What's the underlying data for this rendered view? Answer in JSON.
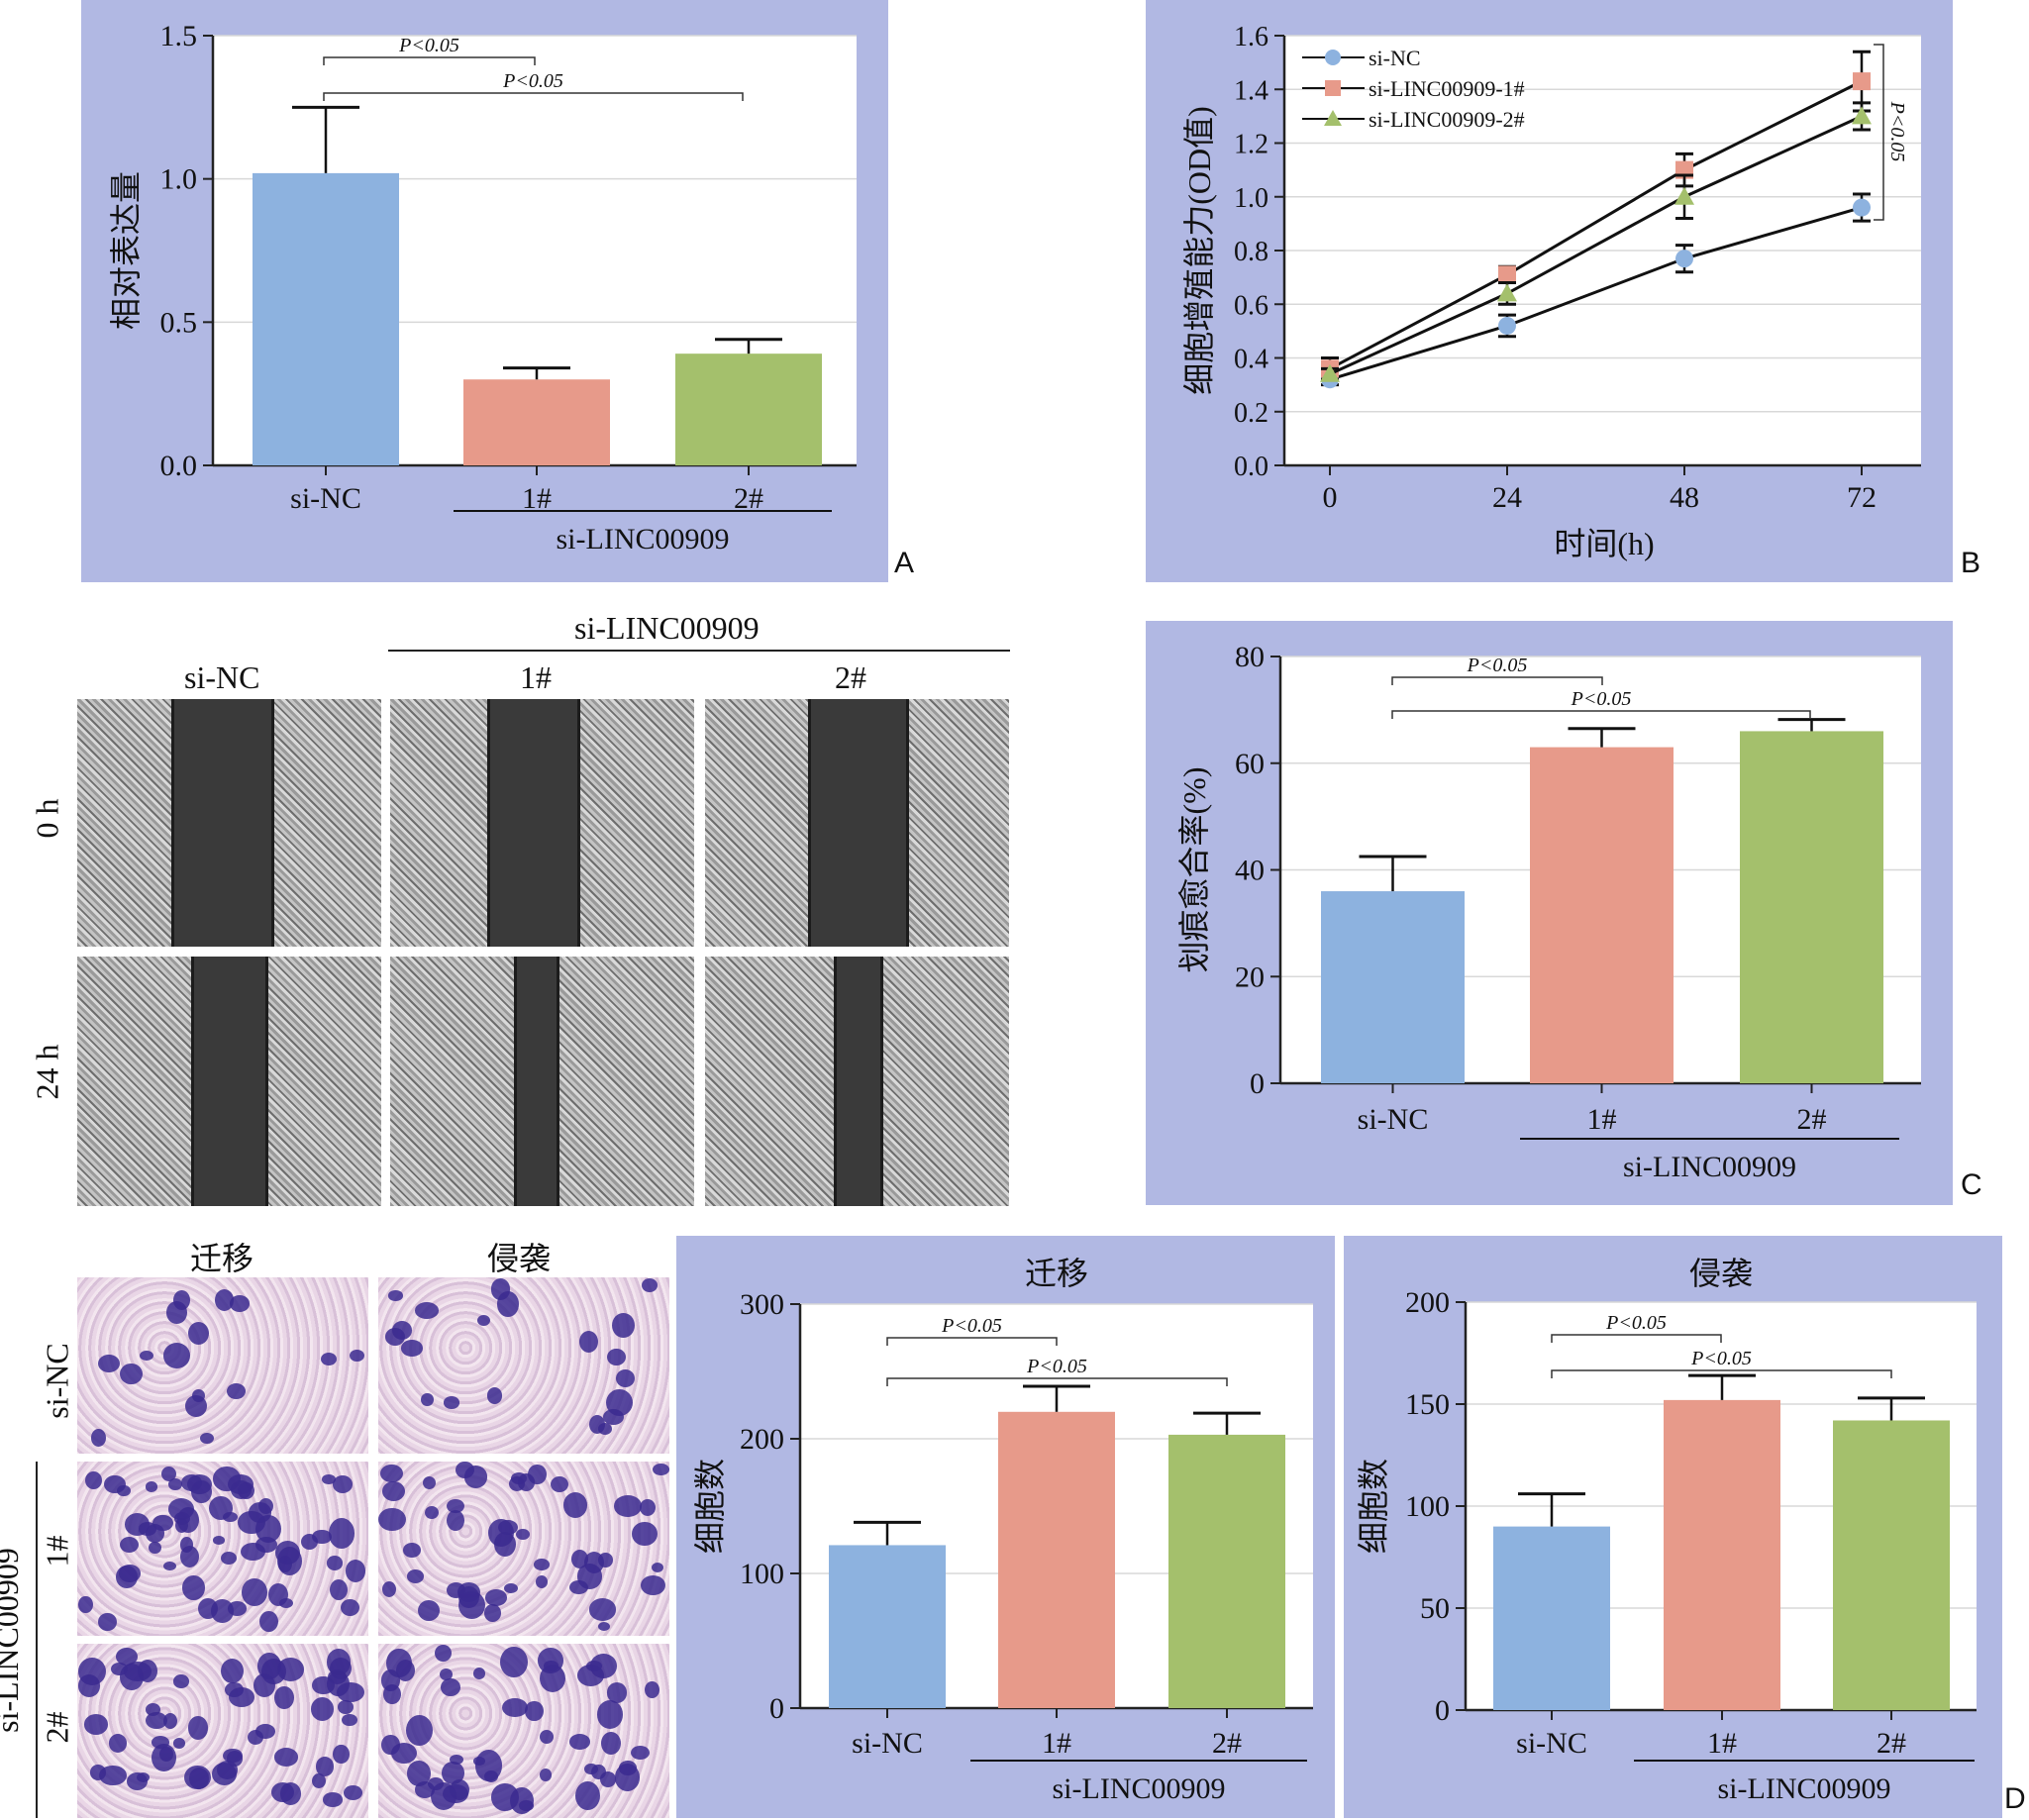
{
  "panel_letters": {
    "a": "A",
    "b": "B",
    "c": "C",
    "d": "D"
  },
  "wound_photo": {
    "group_header": "si-LINC00909",
    "columns": [
      "si-NC",
      "1#",
      "2#"
    ],
    "rows": [
      "0 h",
      "24 h"
    ]
  },
  "transwell_photo": {
    "columns": [
      "迁移",
      "侵袭"
    ],
    "rows": [
      "si-NC",
      "1#",
      "2#"
    ],
    "group_label": "si-LINC00909"
  },
  "colors": {
    "panel_bg": "#b1b8e3",
    "si_nc": "#8db2df",
    "sh1": "#e79a8a",
    "sh2": "#a4c06c",
    "axis": "#222222",
    "grid": "#d8d8d8"
  },
  "chart_data": [
    {
      "id": "A",
      "type": "bar",
      "title": "",
      "ylabel": "相对表达量",
      "ylim": [
        0,
        1.5
      ],
      "yticks": [
        "0.0",
        "0.5",
        "1.0",
        "1.5"
      ],
      "categories": [
        "si-NC",
        "1#",
        "2#"
      ],
      "group_label": "si-LINC00909",
      "values": [
        1.02,
        0.3,
        0.39
      ],
      "errors": [
        0.23,
        0.04,
        0.05
      ],
      "annotations": [
        "P<0.05",
        "P<0.05"
      ]
    },
    {
      "id": "B",
      "type": "line",
      "xlabel": "时间(h)",
      "ylabel": "细胞增殖能力(OD值)",
      "xticks": [
        "0",
        "24",
        "48",
        "72"
      ],
      "x": [
        0,
        24,
        48,
        72
      ],
      "ylim": [
        0,
        1.6
      ],
      "yticks": [
        "0.0",
        "0.2",
        "0.4",
        "0.6",
        "0.8",
        "1.0",
        "1.2",
        "1.4",
        "1.6"
      ],
      "series": [
        {
          "name": "si-NC",
          "values": [
            0.32,
            0.52,
            0.77,
            0.96
          ],
          "errors": [
            0.02,
            0.04,
            0.05,
            0.05
          ]
        },
        {
          "name": "si-LINC00909-1#",
          "values": [
            0.36,
            0.71,
            1.1,
            1.43
          ],
          "errors": [
            0.04,
            0.03,
            0.06,
            0.11
          ]
        },
        {
          "name": "si-LINC00909-2#",
          "values": [
            0.34,
            0.64,
            1.0,
            1.3
          ],
          "errors": [
            0.02,
            0.04,
            0.08,
            0.05
          ]
        }
      ],
      "legend": "top-left",
      "annotation": "P<0.05"
    },
    {
      "id": "C",
      "type": "bar",
      "ylabel": "划痕愈合率(%)",
      "ylim": [
        0,
        80
      ],
      "yticks": [
        "0",
        "20",
        "40",
        "60",
        "80"
      ],
      "categories": [
        "si-NC",
        "1#",
        "2#"
      ],
      "group_label": "si-LINC00909",
      "values": [
        36,
        63,
        66
      ],
      "errors": [
        6.5,
        3.5,
        2.2
      ],
      "annotations": [
        "P<0.05",
        "P<0.05"
      ]
    },
    {
      "id": "D-migration",
      "type": "bar",
      "title": "迁移",
      "ylabel": "细胞数",
      "ylim": [
        0,
        300
      ],
      "yticks": [
        "0",
        "100",
        "200",
        "300"
      ],
      "categories": [
        "si-NC",
        "1#",
        "2#"
      ],
      "group_label": "si-LINC00909",
      "values": [
        121,
        220,
        203
      ],
      "errors": [
        17,
        19,
        16
      ],
      "annotations": [
        "P<0.05",
        "P<0.05"
      ]
    },
    {
      "id": "D-invasion",
      "type": "bar",
      "title": "侵袭",
      "ylabel": "细胞数",
      "ylim": [
        0,
        200
      ],
      "yticks": [
        "0",
        "50",
        "100",
        "150",
        "200"
      ],
      "categories": [
        "si-NC",
        "1#",
        "2#"
      ],
      "group_label": "si-LINC00909",
      "values": [
        90,
        152,
        142
      ],
      "errors": [
        16,
        12,
        11
      ],
      "annotations": [
        "P<0.05",
        "P<0.05"
      ]
    }
  ]
}
